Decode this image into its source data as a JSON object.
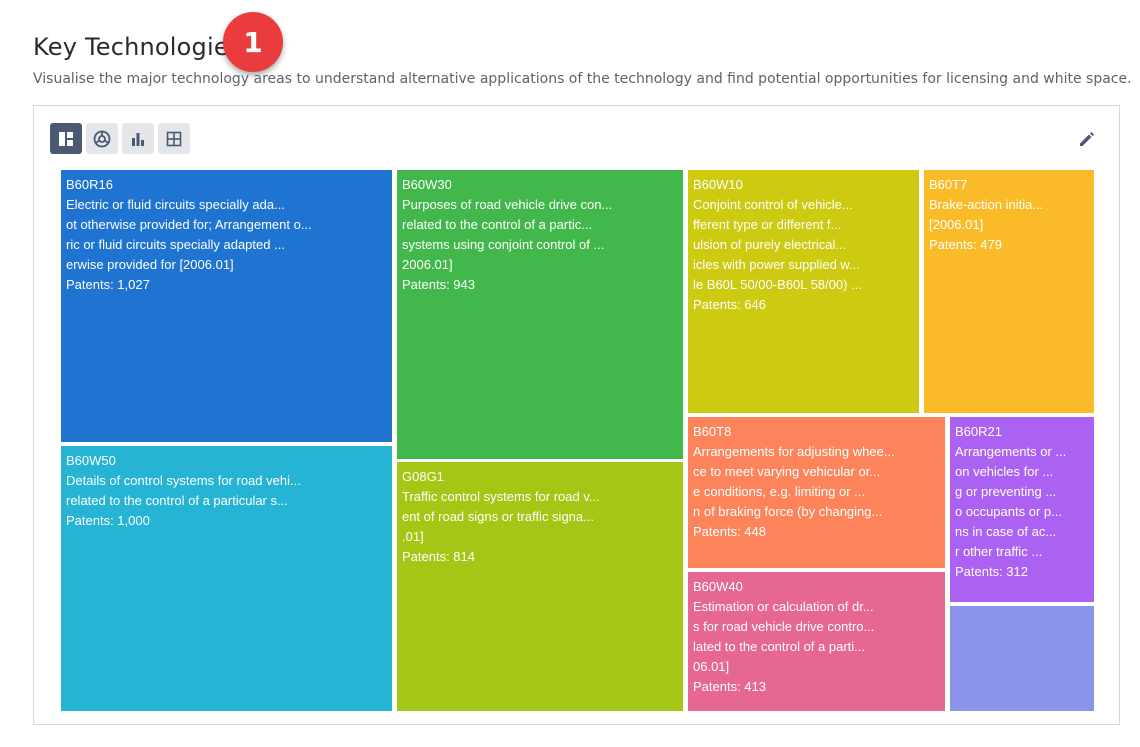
{
  "header": {
    "title": "Key Technologies",
    "badge": "1",
    "subtitle": "Visualise the major technology areas to understand alternative applications of the technology and find potential opportunities for licensing and white space."
  },
  "toolbar": {
    "buttons": [
      {
        "icon": "treemap-icon",
        "active": true
      },
      {
        "icon": "sunburst-icon",
        "active": false
      },
      {
        "icon": "bar-chart-icon",
        "active": false
      },
      {
        "icon": "grid-table-icon",
        "active": false
      }
    ],
    "edit_icon": "pencil-icon"
  },
  "chart_data": {
    "type": "treemap",
    "items": [
      {
        "code": "B60R16",
        "lines": [
          "Electric or fluid circuits specially ada...",
          "ot otherwise provided for; Arrangement o...",
          "ric or fluid circuits specially adapted ...",
          "erwise provided for [2006.01]"
        ],
        "patents_label": "Patents: 1,027",
        "value": 1027,
        "color": "#1f74d1"
      },
      {
        "code": "B60W50",
        "lines": [
          "Details of control systems for road vehi...",
          "related to the control of a particular s..."
        ],
        "patents_label": "Patents: 1,000",
        "value": 1000,
        "color": "#26b4d4"
      },
      {
        "code": "B60W30",
        "lines": [
          "Purposes of road vehicle drive con...",
          "related to the control of a partic...",
          "systems using conjoint control of ...",
          "2006.01]"
        ],
        "patents_label": "Patents: 943",
        "value": 943,
        "color": "#42b84c"
      },
      {
        "code": "G08G1",
        "lines": [
          "Traffic control systems for road v...",
          "ent of road signs or traffic signa...",
          ".01]"
        ],
        "patents_label": "Patents: 814",
        "value": 814,
        "color": "#a4c615"
      },
      {
        "code": "B60W10",
        "lines": [
          "Conjoint control of vehicle...",
          "fferent type or different f...",
          "ulsion of purely electrical...",
          "icles with power supplied w...",
          "le B60L 50/00-B60L 58/00) ..."
        ],
        "patents_label": "Patents: 646",
        "value": 646,
        "color": "#cdca12"
      },
      {
        "code": "B60T7",
        "lines": [
          "Brake-action initia...",
          "[2006.01]"
        ],
        "patents_label": "Patents: 479",
        "value": 479,
        "color": "#fbbb28"
      },
      {
        "code": "B60T8",
        "lines": [
          "Arrangements for adjusting whee...",
          "ce to meet varying vehicular or...",
          "e conditions, e.g. limiting or ...",
          "n of braking force (by changing..."
        ],
        "patents_label": "Patents: 448",
        "value": 448,
        "color": "#fd845a"
      },
      {
        "code": "B60W40",
        "lines": [
          "Estimation or calculation of dr...",
          "s for road vehicle drive contro...",
          "lated to the control of a parti...",
          "06.01]"
        ],
        "patents_label": "Patents: 413",
        "value": 413,
        "color": "#e76794"
      },
      {
        "code": "B60R21",
        "lines": [
          "Arrangements or ...",
          "on vehicles for ...",
          "g or preventing ...",
          "o occupants or p...",
          "ns in case of ac...",
          "r other traffic ..."
        ],
        "patents_label": "Patents: 312",
        "value": 312,
        "color": "#ab62f3"
      },
      {
        "code": "",
        "lines": [],
        "patents_label": "",
        "value": null,
        "color": "#8b93ec"
      }
    ]
  }
}
